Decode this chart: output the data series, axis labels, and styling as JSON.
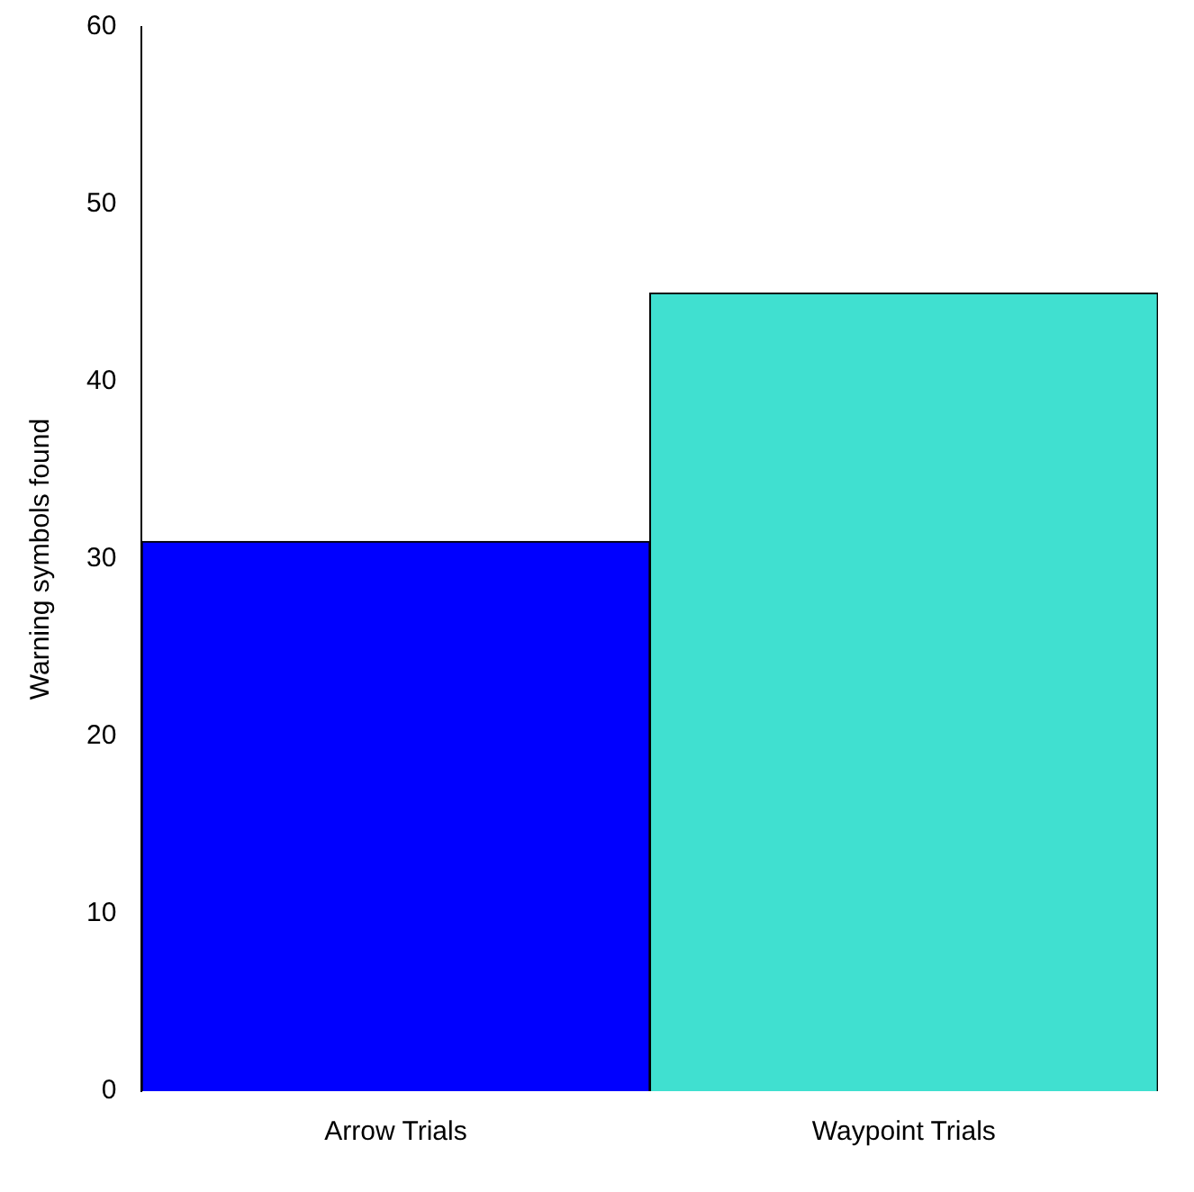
{
  "chart_data": {
    "type": "bar",
    "ylabel": "Warning symbols found",
    "categories": [
      "Arrow Trials",
      "Waypoint Trials"
    ],
    "values": [
      31,
      45
    ],
    "colors": [
      "#0000ff",
      "#40e0d0"
    ],
    "ylim": [
      0,
      60
    ],
    "yticks": [
      0,
      10,
      20,
      30,
      40,
      50,
      60
    ],
    "grid": false,
    "legend": false
  }
}
